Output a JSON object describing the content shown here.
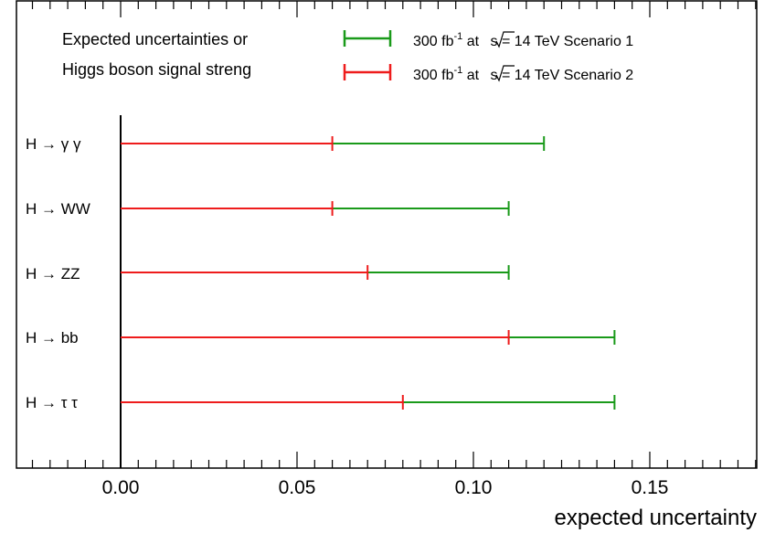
{
  "chart_data": {
    "type": "bar",
    "title": "",
    "xlabel": "expected uncertainty",
    "ylabel": "",
    "xlim": [
      -0.03,
      0.18
    ],
    "grid": false,
    "x_ticks": [
      "0.00",
      "0.05",
      "0.10",
      "0.15"
    ],
    "x_tick_values": [
      0.0,
      0.05,
      0.1,
      0.15
    ],
    "categories": [
      "H → γ γ",
      "H → WW",
      "H → ZZ",
      "H → bb",
      "H → τ τ"
    ],
    "series": [
      {
        "name": "300 fb-1 at √s = 14 TeV Scenario 1",
        "color": "#1a9a1a",
        "values": [
          0.12,
          0.11,
          0.11,
          0.14,
          0.14
        ]
      },
      {
        "name": "300 fb-1 at √s = 14 TeV Scenario 2",
        "color": "#ee1c1c",
        "values": [
          0.06,
          0.06,
          0.07,
          0.11,
          0.08
        ]
      }
    ],
    "legend": {
      "placement": "top",
      "header_lines": [
        "Expected uncertainties or",
        "Higgs boson signal streng"
      ],
      "entries": [
        {
          "prefix": "300 fb",
          "sup": "-1",
          "mid": " at ",
          "sqrt": "s",
          "suffix": " = 14 TeV Scenario 1"
        },
        {
          "prefix": "300 fb",
          "sup": "-1",
          "mid": " at ",
          "sqrt": "s",
          "suffix": " = 14 TeV Scenario 2"
        }
      ]
    }
  }
}
